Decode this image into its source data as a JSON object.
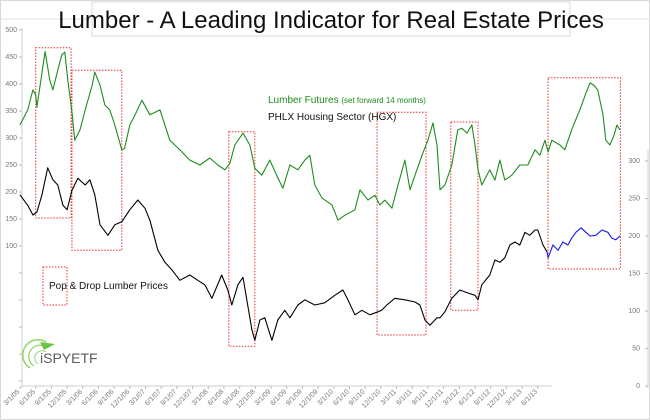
{
  "chart_data": {
    "type": "line",
    "title": "Lumber - A Leading Indicator for Real Estate Prices",
    "legend_placement": "top-center",
    "grid": false,
    "annotation": "Pop & Drop Lumber Prices",
    "x_ticks": [
      "3/1/05",
      "6/1/05",
      "9/1/05",
      "12/1/05",
      "3/1/06",
      "6/1/06",
      "9/1/06",
      "12/1/06",
      "3/1/07",
      "6/1/07",
      "9/1/07",
      "12/1/07",
      "3/1/08",
      "6/1/08",
      "9/1/08",
      "12/1/08",
      "3/1/09",
      "6/1/09",
      "9/1/09",
      "12/1/09",
      "3/1/10",
      "6/1/10",
      "9/1/10",
      "12/1/10",
      "3/1/11",
      "6/1/11",
      "9/1/11",
      "12/1/11",
      "3/1/12",
      "6/1/12",
      "9/1/12",
      "12/1/12",
      "3/1/13",
      "6/1/13"
    ],
    "y_left": {
      "ticks": [
        "500",
        "450",
        "400",
        "350",
        "300",
        "250",
        "200",
        "150",
        "100"
      ],
      "range": [
        100,
        500
      ]
    },
    "y_right": {
      "ticks": [
        "300",
        "250",
        "200",
        "150",
        "100",
        "50",
        "0"
      ],
      "range": [
        0,
        300
      ]
    },
    "colors": {
      "lumber": "#1e8c1e",
      "hgx": "#000000",
      "hgx_recent": "#1a1ae6",
      "boxes": "#e83030"
    },
    "series": [
      {
        "name": "Lumber Futures",
        "name_note": "(set forward 14 months)",
        "axis": "left",
        "color_key": "lumber",
        "points": [
          [
            "2005-03-01",
            324
          ],
          [
            "2005-04-15",
            352
          ],
          [
            "2005-05-15",
            389
          ],
          [
            "2005-06-01",
            380
          ],
          [
            "2005-06-08",
            357
          ],
          [
            "2005-07-25",
            460
          ],
          [
            "2005-08-22",
            407
          ],
          [
            "2005-09-10",
            389
          ],
          [
            "2005-10-08",
            426
          ],
          [
            "2005-11-01",
            454
          ],
          [
            "2005-11-18",
            459
          ],
          [
            "2005-12-05",
            407
          ],
          [
            "2005-12-29",
            348
          ],
          [
            "2006-01-15",
            296
          ],
          [
            "2006-02-15",
            315
          ],
          [
            "2006-03-15",
            352
          ],
          [
            "2006-04-25",
            398
          ],
          [
            "2006-05-10",
            422
          ],
          [
            "2006-06-10",
            398
          ],
          [
            "2006-07-08",
            361
          ],
          [
            "2006-08-06",
            352
          ],
          [
            "2006-09-05",
            324
          ],
          [
            "2006-10-15",
            278
          ],
          [
            "2006-11-01",
            281
          ],
          [
            "2006-12-01",
            324
          ],
          [
            "2007-01-01",
            343
          ],
          [
            "2007-02-10",
            370
          ],
          [
            "2007-03-26",
            343
          ],
          [
            "2007-05-24",
            352
          ],
          [
            "2007-07-20",
            296
          ],
          [
            "2007-09-18",
            278
          ],
          [
            "2007-11-15",
            259
          ],
          [
            "2008-01-13",
            250
          ],
          [
            "2008-03-10",
            263
          ],
          [
            "2008-04-26",
            250
          ],
          [
            "2008-06-06",
            241
          ],
          [
            "2008-07-05",
            253
          ],
          [
            "2008-08-03",
            287
          ],
          [
            "2008-09-20",
            309
          ],
          [
            "2008-10-30",
            287
          ],
          [
            "2008-11-28",
            244
          ],
          [
            "2009-01-08",
            231
          ],
          [
            "2009-02-24",
            259
          ],
          [
            "2009-04-10",
            226
          ],
          [
            "2009-05-09",
            207
          ],
          [
            "2009-06-19",
            250
          ],
          [
            "2009-08-05",
            241
          ],
          [
            "2009-09-15",
            259
          ],
          [
            "2009-10-14",
            268
          ],
          [
            "2009-11-12",
            213
          ],
          [
            "2009-12-23",
            189
          ],
          [
            "2010-02-20",
            176
          ],
          [
            "2010-03-25",
            148
          ],
          [
            "2010-05-05",
            157
          ],
          [
            "2010-07-02",
            167
          ],
          [
            "2010-08-01",
            204
          ],
          [
            "2010-09-17",
            185
          ],
          [
            "2010-10-27",
            194
          ],
          [
            "2010-11-25",
            176
          ],
          [
            "2010-12-24",
            185
          ],
          [
            "2011-02-04",
            170
          ],
          [
            "2011-03-09",
            213
          ],
          [
            "2011-04-19",
            259
          ],
          [
            "2011-05-18",
            204
          ],
          [
            "2011-06-17",
            231
          ],
          [
            "2011-07-27",
            268
          ],
          [
            "2011-09-01",
            296
          ],
          [
            "2011-09-30",
            328
          ],
          [
            "2011-10-23",
            287
          ],
          [
            "2011-11-10",
            204
          ],
          [
            "2011-12-08",
            213
          ],
          [
            "2012-01-18",
            250
          ],
          [
            "2012-02-22",
            315
          ],
          [
            "2012-03-16",
            318
          ],
          [
            "2012-04-15",
            309
          ],
          [
            "2012-05-13",
            324
          ],
          [
            "2012-06-01",
            287
          ],
          [
            "2012-06-18",
            241
          ],
          [
            "2012-07-10",
            213
          ],
          [
            "2012-08-26",
            241
          ],
          [
            "2012-09-25",
            222
          ],
          [
            "2012-10-24",
            259
          ],
          [
            "2012-11-22",
            222
          ],
          [
            "2013-01-02",
            231
          ],
          [
            "2013-02-18",
            250
          ],
          [
            "2013-04-04",
            250
          ],
          [
            "2013-05-15",
            278
          ],
          [
            "2013-06-13",
            268
          ],
          [
            "2013-07-12",
            296
          ],
          [
            "2013-07-30",
            274
          ],
          [
            "2013-08-22",
            296
          ],
          [
            "2013-10-08",
            287
          ],
          [
            "2013-11-06",
            278
          ],
          [
            "2013-12-15",
            315
          ],
          [
            "2014-02-02",
            352
          ],
          [
            "2014-03-07",
            383
          ],
          [
            "2014-04-01",
            402
          ],
          [
            "2014-04-22",
            398
          ],
          [
            "2014-05-15",
            389
          ],
          [
            "2014-06-15",
            343
          ],
          [
            "2014-07-01",
            296
          ],
          [
            "2014-07-25",
            287
          ],
          [
            "2014-08-18",
            305
          ],
          [
            "2014-09-05",
            324
          ],
          [
            "2014-09-22",
            315
          ]
        ]
      },
      {
        "name": "PHLX Housing Sector (HGX)",
        "axis": "right",
        "color_key": "hgx",
        "points": [
          [
            "2005-03-01",
            255
          ],
          [
            "2005-04-15",
            241
          ],
          [
            "2005-05-15",
            228
          ],
          [
            "2005-06-08",
            232
          ],
          [
            "2005-07-07",
            255
          ],
          [
            "2005-08-10",
            291
          ],
          [
            "2005-09-10",
            275
          ],
          [
            "2005-10-08",
            268
          ],
          [
            "2005-11-07",
            241
          ],
          [
            "2005-12-01",
            235
          ],
          [
            "2005-12-29",
            261
          ],
          [
            "2006-02-03",
            277
          ],
          [
            "2006-03-15",
            268
          ],
          [
            "2006-04-12",
            275
          ],
          [
            "2006-05-10",
            255
          ],
          [
            "2006-06-10",
            215
          ],
          [
            "2006-07-25",
            201
          ],
          [
            "2006-09-05",
            215
          ],
          [
            "2006-10-15",
            219
          ],
          [
            "2006-12-01",
            235
          ],
          [
            "2007-01-17",
            248
          ],
          [
            "2007-02-28",
            237
          ],
          [
            "2007-03-26",
            221
          ],
          [
            "2007-05-12",
            181
          ],
          [
            "2007-06-22",
            165
          ],
          [
            "2007-08-02",
            155
          ],
          [
            "2007-09-18",
            141
          ],
          [
            "2007-11-15",
            148
          ],
          [
            "2008-01-01",
            141
          ],
          [
            "2008-02-11",
            135
          ],
          [
            "2008-03-22",
            117
          ],
          [
            "2008-05-18",
            148
          ],
          [
            "2008-06-23",
            128
          ],
          [
            "2008-07-16",
            108
          ],
          [
            "2008-08-21",
            135
          ],
          [
            "2008-09-20",
            145
          ],
          [
            "2008-10-12",
            115
          ],
          [
            "2008-11-11",
            75
          ],
          [
            "2008-11-28",
            61
          ],
          [
            "2008-12-27",
            88
          ],
          [
            "2009-01-25",
            91
          ],
          [
            "2009-03-06",
            61
          ],
          [
            "2009-04-10",
            88
          ],
          [
            "2009-05-20",
            101
          ],
          [
            "2009-06-19",
            91
          ],
          [
            "2009-08-05",
            108
          ],
          [
            "2009-09-15",
            115
          ],
          [
            "2009-11-12",
            108
          ],
          [
            "2010-01-09",
            111
          ],
          [
            "2010-03-07",
            121
          ],
          [
            "2010-04-23",
            128
          ],
          [
            "2010-05-22",
            115
          ],
          [
            "2010-07-02",
            95
          ],
          [
            "2010-08-12",
            101
          ],
          [
            "2010-09-28",
            95
          ],
          [
            "2010-11-14",
            99
          ],
          [
            "2010-12-06",
            101
          ],
          [
            "2011-01-05",
            108
          ],
          [
            "2011-02-21",
            117
          ],
          [
            "2011-04-19",
            115
          ],
          [
            "2011-06-17",
            112
          ],
          [
            "2011-07-15",
            108
          ],
          [
            "2011-08-14",
            88
          ],
          [
            "2011-09-12",
            81
          ],
          [
            "2011-10-23",
            91
          ],
          [
            "2011-11-10",
            91
          ],
          [
            "2011-12-08",
            99
          ],
          [
            "2012-01-18",
            117
          ],
          [
            "2012-03-04",
            128
          ],
          [
            "2012-04-20",
            124
          ],
          [
            "2012-06-01",
            121
          ],
          [
            "2012-06-18",
            115
          ],
          [
            "2012-07-10",
            135
          ],
          [
            "2012-08-26",
            148
          ],
          [
            "2012-09-25",
            168
          ],
          [
            "2012-10-24",
            165
          ],
          [
            "2012-11-22",
            171
          ],
          [
            "2012-12-21",
            188
          ],
          [
            "2013-01-20",
            192
          ],
          [
            "2013-02-18",
            188
          ],
          [
            "2013-03-17",
            205
          ],
          [
            "2013-04-15",
            201
          ],
          [
            "2013-05-15",
            208
          ],
          [
            "2013-06-01",
            208
          ],
          [
            "2013-07-01",
            188
          ],
          [
            "2013-07-24",
            179
          ]
        ]
      },
      {
        "axis": "right",
        "color_key": "hgx_recent",
        "points": [
          [
            "2013-07-24",
            179
          ],
          [
            "2013-07-30",
            171
          ],
          [
            "2013-08-28",
            188
          ],
          [
            "2013-09-27",
            181
          ],
          [
            "2013-10-25",
            192
          ],
          [
            "2013-11-24",
            188
          ],
          [
            "2013-12-15",
            197
          ],
          [
            "2014-01-10",
            205
          ],
          [
            "2014-02-10",
            211
          ],
          [
            "2014-03-07",
            205
          ],
          [
            "2014-04-01",
            200
          ],
          [
            "2014-05-04",
            201
          ],
          [
            "2014-06-09",
            208
          ],
          [
            "2014-07-13",
            205
          ],
          [
            "2014-08-06",
            197
          ],
          [
            "2014-08-28",
            195
          ],
          [
            "2014-09-22",
            200
          ]
        ]
      }
    ],
    "pop_drop_boxes": [
      {
        "from": "2005-06-01",
        "to": "2005-12-24",
        "axis": "right",
        "low": 224,
        "high": 451
      },
      {
        "from": "2005-12-29",
        "to": "2006-10-15",
        "axis": "right",
        "low": 181,
        "high": 421
      },
      {
        "from": "2008-06-29",
        "to": "2008-11-28",
        "axis": "right",
        "low": 53,
        "high": 339
      },
      {
        "from": "2010-11-09",
        "to": "2011-08-20",
        "axis": "right",
        "low": 68,
        "high": 365
      },
      {
        "from": "2012-01-12",
        "to": "2012-06-18",
        "axis": "right",
        "low": 101,
        "high": 352
      },
      {
        "from": "2013-07-30",
        "to": "2014-09-25",
        "axis": "right",
        "low": 156,
        "high": 411
      }
    ]
  },
  "logo": {
    "text": "iSPYETF"
  }
}
